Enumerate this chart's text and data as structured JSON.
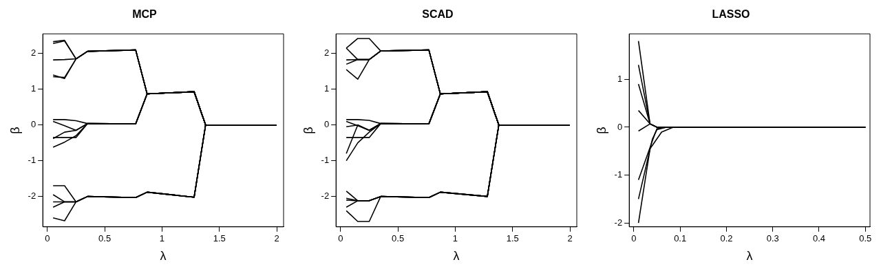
{
  "chart_data": [
    {
      "type": "line",
      "title": "MCP",
      "xlabel": "λ",
      "ylabel": "β",
      "xlim": [
        -0.04,
        2.06
      ],
      "ylim": [
        -2.85,
        2.55
      ],
      "xticks": [
        0,
        0.5,
        1,
        1.5,
        2
      ],
      "yticks": [
        -2,
        -1,
        0,
        1,
        2
      ],
      "grid": false,
      "legend": false,
      "series": [
        {
          "color": "#000000",
          "x": [
            0.05,
            0.15,
            0.25,
            0.35,
            0.77,
            0.87,
            1.28,
            1.38,
            2.0
          ],
          "values": [
            2.33,
            2.37,
            1.85,
            2.06,
            2.1,
            0.87,
            0.93,
            0,
            0
          ]
        },
        {
          "color": "#000000",
          "x": [
            0.05,
            0.15,
            0.25,
            0.35,
            0.77,
            0.87,
            1.28,
            1.38,
            2.0
          ],
          "values": [
            2.28,
            2.35,
            1.85,
            2.06,
            2.1,
            0.87,
            0.93,
            0,
            0
          ]
        },
        {
          "color": "#000000",
          "x": [
            0.05,
            0.15,
            0.25,
            0.35,
            0.77,
            0.87,
            1.28,
            1.38,
            2.0
          ],
          "values": [
            1.82,
            1.83,
            1.85,
            2.06,
            2.1,
            0.87,
            0.93,
            0,
            0
          ]
        },
        {
          "color": "#000000",
          "x": [
            0.05,
            0.15,
            0.25,
            0.35,
            0.77,
            0.87,
            1.28,
            1.38,
            2.0
          ],
          "values": [
            1.4,
            1.3,
            1.85,
            2.06,
            2.1,
            0.87,
            0.93,
            0,
            0
          ]
        },
        {
          "color": "#000000",
          "x": [
            0.05,
            0.15,
            0.25,
            0.35,
            0.77,
            0.87,
            1.28,
            1.38,
            2.0
          ],
          "values": [
            1.35,
            1.33,
            1.85,
            2.06,
            2.1,
            0.87,
            0.93,
            0,
            0
          ]
        },
        {
          "color": "#000000",
          "x": [
            0.05,
            0.15,
            0.25,
            0.35,
            0.77,
            0.87,
            1.28,
            1.38,
            2.0
          ],
          "values": [
            0.15,
            0.15,
            0.12,
            0.04,
            0.03,
            0.87,
            0.93,
            0,
            0
          ]
        },
        {
          "color": "#000000",
          "x": [
            0.05,
            0.15,
            0.25,
            0.35,
            0.77,
            0.87,
            1.28,
            1.38,
            2.0
          ],
          "values": [
            0.1,
            -0.02,
            -0.15,
            0.04,
            0.03,
            0.87,
            0.93,
            0,
            0
          ]
        },
        {
          "color": "#000000",
          "x": [
            0.05,
            0.15,
            0.25,
            0.35,
            0.77,
            0.87,
            1.28,
            1.38,
            2.0
          ],
          "values": [
            -0.35,
            -0.35,
            -0.35,
            0.04,
            0.03,
            0.87,
            0.93,
            0,
            0
          ]
        },
        {
          "color": "#000000",
          "x": [
            0.05,
            0.15,
            0.25,
            0.35,
            0.77,
            0.87,
            1.28,
            1.38,
            2.0
          ],
          "values": [
            -0.38,
            -0.2,
            -0.15,
            0.04,
            0.03,
            0.87,
            0.93,
            0,
            0
          ]
        },
        {
          "color": "#000000",
          "x": [
            0.05,
            0.15,
            0.25,
            0.35,
            0.77,
            0.87,
            1.28,
            1.38,
            2.0
          ],
          "values": [
            -0.62,
            -0.48,
            -0.3,
            0.04,
            0.03,
            0.87,
            0.93,
            0,
            0
          ]
        },
        {
          "color": "#000000",
          "x": [
            0.05,
            0.15,
            0.25,
            0.35,
            0.77,
            0.87,
            1.28,
            1.38,
            2.0
          ],
          "values": [
            -1.7,
            -1.7,
            -2.15,
            -2.0,
            -2.03,
            -1.88,
            -2.02,
            0,
            0
          ]
        },
        {
          "color": "#000000",
          "x": [
            0.05,
            0.15,
            0.25,
            0.35,
            0.77,
            0.87,
            1.28,
            1.38,
            2.0
          ],
          "values": [
            -1.95,
            -2.15,
            -2.15,
            -2.0,
            -2.03,
            -1.88,
            -2.02,
            0,
            0
          ]
        },
        {
          "color": "#000000",
          "x": [
            0.05,
            0.15,
            0.25,
            0.35,
            0.77,
            0.87,
            1.28,
            1.38,
            2.0
          ],
          "values": [
            -2.15,
            -2.15,
            -2.15,
            -2.0,
            -2.03,
            -1.88,
            -2.02,
            0,
            0
          ]
        },
        {
          "color": "#000000",
          "x": [
            0.05,
            0.15,
            0.25,
            0.35,
            0.77,
            0.87,
            1.28,
            1.38,
            2.0
          ],
          "values": [
            -2.3,
            -2.15,
            -2.15,
            -2.0,
            -2.03,
            -1.88,
            -2.02,
            0,
            0
          ]
        },
        {
          "color": "#000000",
          "x": [
            0.05,
            0.15,
            0.25,
            0.35,
            0.77,
            0.87,
            1.28,
            1.38,
            2.0
          ],
          "values": [
            -2.6,
            -2.68,
            -2.15,
            -2.0,
            -2.03,
            -1.88,
            -2.02,
            0,
            0
          ]
        }
      ]
    },
    {
      "type": "line",
      "title": "SCAD",
      "xlabel": "λ",
      "ylabel": "β",
      "xlim": [
        -0.04,
        2.06
      ],
      "ylim": [
        -2.85,
        2.55
      ],
      "xticks": [
        0,
        0.5,
        1,
        1.5,
        2
      ],
      "yticks": [
        -2,
        -1,
        0,
        1,
        2
      ],
      "grid": false,
      "legend": false,
      "series": [
        {
          "color": "#000000",
          "x": [
            0.05,
            0.15,
            0.25,
            0.35,
            0.77,
            0.87,
            1.28,
            1.38,
            2.0
          ],
          "values": [
            2.15,
            2.42,
            2.42,
            2.07,
            2.1,
            0.87,
            0.93,
            0,
            0
          ]
        },
        {
          "color": "#000000",
          "x": [
            0.05,
            0.15,
            0.25,
            0.35,
            0.77,
            0.87,
            1.28,
            1.38,
            2.0
          ],
          "values": [
            2.15,
            1.83,
            1.83,
            2.07,
            2.1,
            0.87,
            0.93,
            0,
            0
          ]
        },
        {
          "color": "#000000",
          "x": [
            0.05,
            0.15,
            0.25,
            0.35,
            0.77,
            0.87,
            1.28,
            1.38,
            2.0
          ],
          "values": [
            1.82,
            1.83,
            1.83,
            2.07,
            2.1,
            0.87,
            0.93,
            0,
            0
          ]
        },
        {
          "color": "#000000",
          "x": [
            0.05,
            0.15,
            0.25,
            0.35,
            0.77,
            0.87,
            1.28,
            1.38,
            2.0
          ],
          "values": [
            1.7,
            1.83,
            1.83,
            2.07,
            2.1,
            0.87,
            0.93,
            0,
            0
          ]
        },
        {
          "color": "#000000",
          "x": [
            0.05,
            0.15,
            0.25,
            0.35,
            0.77,
            0.87,
            1.28,
            1.38,
            2.0
          ],
          "values": [
            1.55,
            1.28,
            1.83,
            2.07,
            2.1,
            0.87,
            0.93,
            0,
            0
          ]
        },
        {
          "color": "#000000",
          "x": [
            0.05,
            0.15,
            0.25,
            0.35,
            0.77,
            0.87,
            1.28,
            1.38,
            2.0
          ],
          "values": [
            0.15,
            0.15,
            0.13,
            0.04,
            0.03,
            0.87,
            0.93,
            0,
            0
          ]
        },
        {
          "color": "#000000",
          "x": [
            0.05,
            0.15,
            0.25,
            0.35,
            0.77,
            0.87,
            1.28,
            1.38,
            2.0
          ],
          "values": [
            0.1,
            -0.02,
            -0.15,
            0.04,
            0.03,
            0.87,
            0.93,
            0,
            0
          ]
        },
        {
          "color": "#000000",
          "x": [
            0.05,
            0.15,
            0.25,
            0.35,
            0.77,
            0.87,
            1.28,
            1.38,
            2.0
          ],
          "values": [
            -0.05,
            0.0,
            -0.15,
            0.04,
            0.03,
            0.87,
            0.93,
            0,
            0
          ]
        },
        {
          "color": "#000000",
          "x": [
            0.05,
            0.15,
            0.25,
            0.35,
            0.77,
            0.87,
            1.28,
            1.38,
            2.0
          ],
          "values": [
            -0.35,
            -0.35,
            -0.35,
            0.04,
            0.03,
            0.87,
            0.93,
            0,
            0
          ]
        },
        {
          "color": "#000000",
          "x": [
            0.05,
            0.15,
            0.25,
            0.35,
            0.77,
            0.87,
            1.28,
            1.38,
            2.0
          ],
          "values": [
            -0.8,
            0.0,
            -0.15,
            0.04,
            0.03,
            0.87,
            0.93,
            0,
            0
          ]
        },
        {
          "color": "#000000",
          "x": [
            0.05,
            0.15,
            0.25,
            0.35,
            0.77,
            0.87,
            1.28,
            1.38,
            2.0
          ],
          "values": [
            -1.0,
            -0.5,
            -0.2,
            0.04,
            0.03,
            0.87,
            0.93,
            0,
            0
          ]
        },
        {
          "color": "#000000",
          "x": [
            0.05,
            0.15,
            0.25,
            0.35,
            0.77,
            0.87,
            1.28,
            1.38,
            2.0
          ],
          "values": [
            -1.85,
            -2.12,
            -2.12,
            -2.0,
            -2.03,
            -1.88,
            -2.0,
            0,
            0
          ]
        },
        {
          "color": "#000000",
          "x": [
            0.05,
            0.15,
            0.25,
            0.35,
            0.77,
            0.87,
            1.28,
            1.38,
            2.0
          ],
          "values": [
            -2.05,
            -2.12,
            -2.12,
            -2.0,
            -2.03,
            -1.88,
            -2.0,
            0,
            0
          ]
        },
        {
          "color": "#000000",
          "x": [
            0.05,
            0.15,
            0.25,
            0.35,
            0.77,
            0.87,
            1.28,
            1.38,
            2.0
          ],
          "values": [
            -2.1,
            -2.12,
            -2.12,
            -2.0,
            -2.03,
            -1.88,
            -2.0,
            0,
            0
          ]
        },
        {
          "color": "#000000",
          "x": [
            0.05,
            0.15,
            0.25,
            0.35,
            0.77,
            0.87,
            1.28,
            1.38,
            2.0
          ],
          "values": [
            -2.3,
            -2.12,
            -2.12,
            -2.0,
            -2.03,
            -1.88,
            -2.0,
            0,
            0
          ]
        },
        {
          "color": "#000000",
          "x": [
            0.05,
            0.15,
            0.25,
            0.35,
            0.77,
            0.87,
            1.28,
            1.38,
            2.0
          ],
          "values": [
            -2.4,
            -2.7,
            -2.7,
            -2.0,
            -2.03,
            -1.88,
            -2.0,
            0,
            0
          ]
        }
      ]
    },
    {
      "type": "line",
      "title": "LASSO",
      "xlabel": "λ",
      "ylabel": "β",
      "xlim": [
        -0.01,
        0.51
      ],
      "ylim": [
        -2.08,
        1.95
      ],
      "xticks": [
        0,
        0.1,
        0.2,
        0.3,
        0.4,
        0.5
      ],
      "yticks": [
        -2,
        -1,
        0,
        1
      ],
      "grid": false,
      "legend": false,
      "series": [
        {
          "color": "#000000",
          "x": [
            0.01,
            0.035,
            0.05,
            0.5
          ],
          "values": [
            1.8,
            0.07,
            0,
            0
          ]
        },
        {
          "color": "#000000",
          "x": [
            0.01,
            0.035,
            0.05,
            0.5
          ],
          "values": [
            1.3,
            0.07,
            0,
            0
          ]
        },
        {
          "color": "#000000",
          "x": [
            0.01,
            0.035,
            0.05,
            0.5
          ],
          "values": [
            0.9,
            0.07,
            0,
            0
          ]
        },
        {
          "color": "#000000",
          "x": [
            0.01,
            0.035,
            0.05,
            0.5
          ],
          "values": [
            0.35,
            0.07,
            0,
            0
          ]
        },
        {
          "color": "#000000",
          "x": [
            0.01,
            0.035,
            0.05,
            0.5
          ],
          "values": [
            -0.08,
            0.07,
            0,
            0
          ]
        },
        {
          "color": "#000000",
          "x": [
            0.01,
            0.035,
            0.06,
            0.085,
            0.5
          ],
          "values": [
            -2.0,
            -0.45,
            -0.1,
            0,
            0
          ]
        },
        {
          "color": "#000000",
          "x": [
            0.01,
            0.04,
            0.05,
            0.07,
            0.5
          ],
          "values": [
            -1.5,
            -0.25,
            -0.05,
            0,
            0
          ]
        },
        {
          "color": "#000000",
          "x": [
            0.01,
            0.045,
            0.05,
            0.07,
            0.5
          ],
          "values": [
            -1.1,
            -0.15,
            -0.03,
            0,
            0
          ]
        }
      ]
    }
  ]
}
